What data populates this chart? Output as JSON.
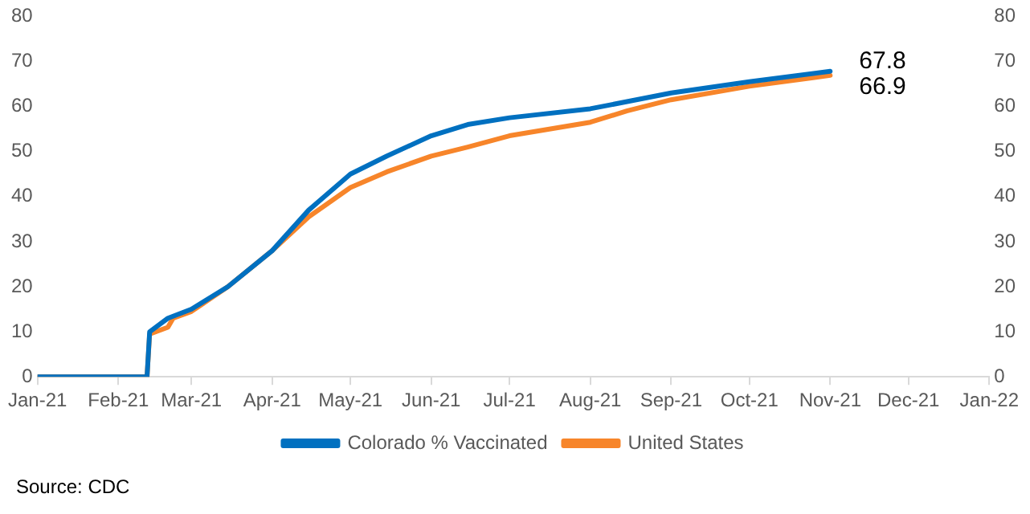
{
  "chart_data": {
    "type": "line",
    "series": [
      {
        "name": "Colorado % Vaccinated",
        "color": "#0070c0",
        "x": [
          "2021-01-01",
          "2021-02-12",
          "2021-02-13",
          "2021-02-20",
          "2021-03-01",
          "2021-03-15",
          "2021-04-01",
          "2021-04-15",
          "2021-05-01",
          "2021-05-15",
          "2021-06-01",
          "2021-06-15",
          "2021-07-01",
          "2021-08-01",
          "2021-09-01",
          "2021-10-01",
          "2021-11-01"
        ],
        "values": [
          0,
          0,
          10,
          13,
          15,
          20,
          28,
          37,
          45,
          49,
          53.5,
          56,
          57.5,
          59.5,
          63,
          65.5,
          67.8
        ]
      },
      {
        "name": "United States",
        "color": "#f7852a",
        "x": [
          "2021-01-01",
          "2021-02-12",
          "2021-02-13",
          "2021-02-20",
          "2021-02-22",
          "2021-03-01",
          "2021-03-15",
          "2021-04-01",
          "2021-04-15",
          "2021-05-01",
          "2021-05-15",
          "2021-06-01",
          "2021-06-15",
          "2021-07-01",
          "2021-08-01",
          "2021-08-15",
          "2021-09-01",
          "2021-10-01",
          "2021-11-01"
        ],
        "values": [
          0,
          0,
          9.5,
          11,
          13,
          14.5,
          20,
          28,
          35.5,
          42,
          45.5,
          49,
          51,
          53.5,
          56.5,
          59,
          61.5,
          64.5,
          66.9
        ]
      }
    ],
    "xlim": [
      "2021-01-01",
      "2022-01-01"
    ],
    "xticks": [
      {
        "value": "2021-01-01",
        "label": "Jan-21"
      },
      {
        "value": "2021-02-01",
        "label": "Feb-21"
      },
      {
        "value": "2021-03-01",
        "label": "Mar-21"
      },
      {
        "value": "2021-04-01",
        "label": "Apr-21"
      },
      {
        "value": "2021-05-01",
        "label": "May-21"
      },
      {
        "value": "2021-06-01",
        "label": "Jun-21"
      },
      {
        "value": "2021-07-01",
        "label": "Jul-21"
      },
      {
        "value": "2021-08-01",
        "label": "Aug-21"
      },
      {
        "value": "2021-09-01",
        "label": "Sep-21"
      },
      {
        "value": "2021-10-01",
        "label": "Oct-21"
      },
      {
        "value": "2021-11-01",
        "label": "Nov-21"
      },
      {
        "value": "2021-12-01",
        "label": "Dec-21"
      },
      {
        "value": "2022-01-01",
        "label": "Jan-22"
      }
    ],
    "ylim": [
      0,
      80
    ],
    "yticks": [
      0,
      10,
      20,
      30,
      40,
      50,
      60,
      70,
      80
    ],
    "y2lim": [
      0,
      80
    ],
    "y2ticks": [
      0,
      10,
      20,
      30,
      40,
      50,
      60,
      70,
      80
    ],
    "annotations": [
      {
        "text": "67.8",
        "x": "2021-11-01",
        "y": 67.8
      },
      {
        "text": "66.9",
        "x": "2021-11-01",
        "y": 66.9
      },
      "Source: CDC"
    ],
    "grid": false,
    "legend": "bottom",
    "marker": "none",
    "line_style": "solid"
  }
}
